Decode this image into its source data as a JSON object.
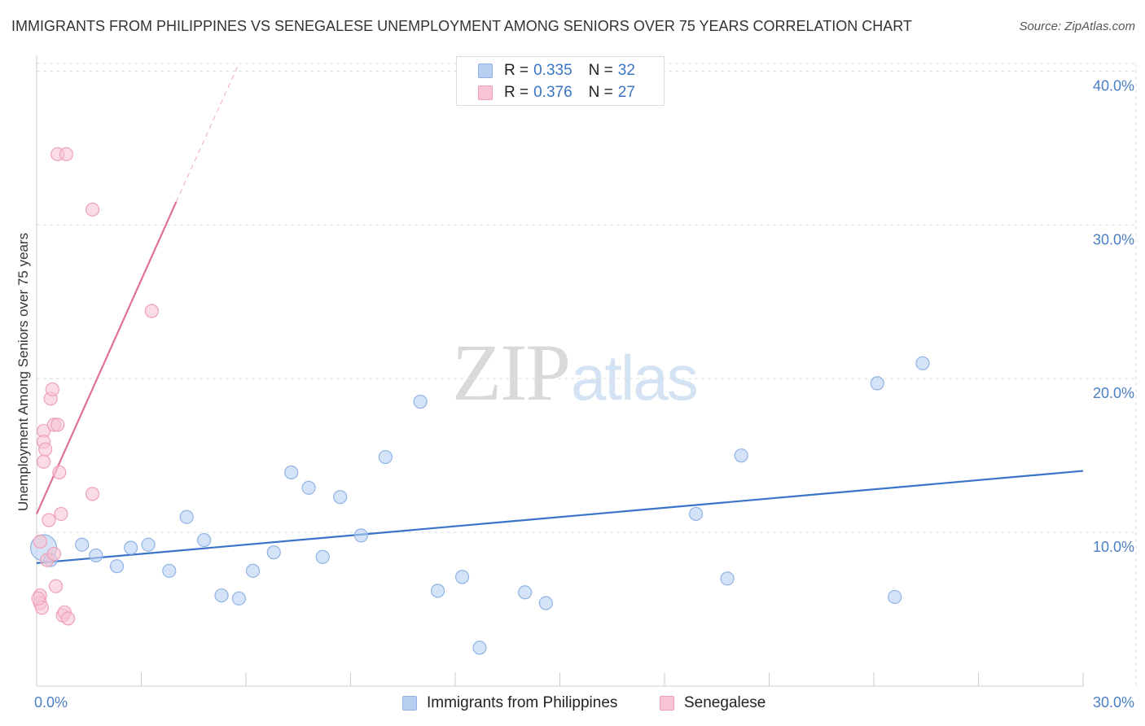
{
  "title": "IMMIGRANTS FROM PHILIPPINES VS SENEGALESE UNEMPLOYMENT AMONG SENIORS OVER 75 YEARS CORRELATION CHART",
  "source": "Source: ZipAtlas.com",
  "watermark": {
    "zip": "ZIP",
    "atlas": "atlas"
  },
  "legend": {
    "series1": {
      "r_label": "R =",
      "r_value": "0.335",
      "n_label": "N =",
      "n_value": "32"
    },
    "series2": {
      "r_label": "R =",
      "r_value": "0.376",
      "n_label": "N =",
      "n_value": "27"
    }
  },
  "bottom_legend": {
    "series1": "Immigrants from Philippines",
    "series2": "Senegalese"
  },
  "colors": {
    "blue_fill": "#b7d0f1",
    "blue_stroke": "#8fb3e3",
    "blue_line": "#3a74c9",
    "pink_fill": "#f8c4d4",
    "pink_stroke": "#eea0b8",
    "pink_line": "#e0709a",
    "grid": "#dddddd",
    "tick_text": "#4a7fc6"
  },
  "chart_data": {
    "type": "scatter",
    "title": "IMMIGRANTS FROM PHILIPPINES VS SENEGALESE UNEMPLOYMENT AMONG SENIORS OVER 75 YEARS CORRELATION CHART",
    "xlabel": "",
    "ylabel": "Unemployment Among Seniors over 75 years",
    "xlim": [
      0,
      30
    ],
    "ylim": [
      0,
      40.5
    ],
    "x_tick_labels": [
      "0.0%",
      "30.0%"
    ],
    "y_ticks": [
      {
        "value": 10,
        "label": "10.0%"
      },
      {
        "value": 20,
        "label": "20.0%"
      },
      {
        "value": 30,
        "label": "30.0%"
      },
      {
        "value": 40,
        "label": "40.0%"
      }
    ],
    "series": [
      {
        "name": "Immigrants from Philippines",
        "color": "blue",
        "r": 0.335,
        "n": 32,
        "trend": {
          "x": [
            0,
            30
          ],
          "y": [
            8.0,
            14.0
          ]
        },
        "points": [
          {
            "x": 0.2,
            "y": 9.0,
            "big": true
          },
          {
            "x": 1.3,
            "y": 9.2
          },
          {
            "x": 1.7,
            "y": 8.5
          },
          {
            "x": 2.3,
            "y": 7.8
          },
          {
            "x": 2.7,
            "y": 9.0
          },
          {
            "x": 3.2,
            "y": 9.2
          },
          {
            "x": 3.8,
            "y": 7.5
          },
          {
            "x": 4.3,
            "y": 11.0
          },
          {
            "x": 4.8,
            "y": 9.5
          },
          {
            "x": 5.3,
            "y": 5.9
          },
          {
            "x": 5.8,
            "y": 5.7
          },
          {
            "x": 6.2,
            "y": 7.5
          },
          {
            "x": 6.8,
            "y": 8.7
          },
          {
            "x": 7.3,
            "y": 13.9
          },
          {
            "x": 7.8,
            "y": 12.9
          },
          {
            "x": 8.2,
            "y": 8.4
          },
          {
            "x": 8.7,
            "y": 12.3
          },
          {
            "x": 9.3,
            "y": 9.8
          },
          {
            "x": 10.0,
            "y": 14.9
          },
          {
            "x": 11.0,
            "y": 18.5
          },
          {
            "x": 11.5,
            "y": 6.2
          },
          {
            "x": 12.2,
            "y": 7.1
          },
          {
            "x": 12.7,
            "y": 2.5
          },
          {
            "x": 14.0,
            "y": 6.1
          },
          {
            "x": 14.6,
            "y": 5.4
          },
          {
            "x": 18.9,
            "y": 11.2
          },
          {
            "x": 19.8,
            "y": 7.0
          },
          {
            "x": 20.2,
            "y": 15.0
          },
          {
            "x": 24.1,
            "y": 19.7
          },
          {
            "x": 24.6,
            "y": 5.8
          },
          {
            "x": 25.4,
            "y": 21.0
          },
          {
            "x": 0.4,
            "y": 8.2
          }
        ]
      },
      {
        "name": "Senegalese",
        "color": "pink",
        "r": 0.376,
        "n": 27,
        "trend": {
          "x": [
            0,
            4.0
          ],
          "y": [
            11.2,
            31.5
          ],
          "dashed_to": {
            "x": 5.8,
            "y": 40.5
          }
        },
        "points": [
          {
            "x": 0.1,
            "y": 9.4
          },
          {
            "x": 0.2,
            "y": 16.6
          },
          {
            "x": 0.2,
            "y": 15.9
          },
          {
            "x": 0.2,
            "y": 14.6
          },
          {
            "x": 0.25,
            "y": 15.4
          },
          {
            "x": 0.3,
            "y": 8.2
          },
          {
            "x": 0.35,
            "y": 10.8
          },
          {
            "x": 0.4,
            "y": 18.7
          },
          {
            "x": 0.45,
            "y": 19.3
          },
          {
            "x": 0.5,
            "y": 17.0
          },
          {
            "x": 0.5,
            "y": 8.6
          },
          {
            "x": 0.55,
            "y": 6.5
          },
          {
            "x": 0.6,
            "y": 17.0
          },
          {
            "x": 0.6,
            "y": 34.6
          },
          {
            "x": 0.65,
            "y": 13.9
          },
          {
            "x": 0.7,
            "y": 11.2
          },
          {
            "x": 0.75,
            "y": 4.6
          },
          {
            "x": 0.8,
            "y": 4.8
          },
          {
            "x": 0.85,
            "y": 34.6
          },
          {
            "x": 0.9,
            "y": 4.4
          },
          {
            "x": 1.6,
            "y": 31.0
          },
          {
            "x": 1.6,
            "y": 12.5
          },
          {
            "x": 3.3,
            "y": 24.4
          },
          {
            "x": 0.1,
            "y": 5.9
          },
          {
            "x": 0.1,
            "y": 5.4
          },
          {
            "x": 0.15,
            "y": 5.1
          },
          {
            "x": 0.05,
            "y": 5.7
          }
        ]
      }
    ]
  }
}
